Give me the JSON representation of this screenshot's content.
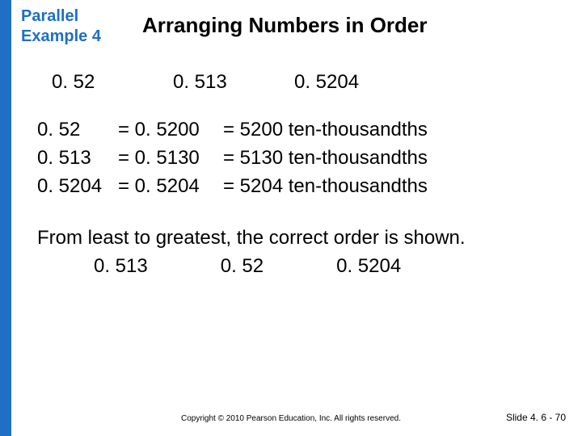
{
  "header": {
    "example_label_line1": "Parallel",
    "example_label_line2": "Example 4",
    "title": "Arranging Numbers in Order"
  },
  "given": {
    "n1": "0. 52",
    "n2": "0. 513",
    "n3": "0. 5204"
  },
  "rows": [
    {
      "a": "0. 52",
      "b": "= 0. 5200",
      "c": "= 5200 ten-thousandths"
    },
    {
      "a": "0. 513",
      "b": "= 0. 5130",
      "c": "= 5130 ten-thousandths"
    },
    {
      "a": "0. 5204",
      "b": "= 0. 5204",
      "c": "= 5204 ten-thousandths"
    }
  ],
  "conclusion": "From least to greatest, the correct order is shown.",
  "ordered": {
    "o1": "0. 513",
    "o2": "0. 52",
    "o3": "0. 5204"
  },
  "footer": {
    "copyright": "Copyright © 2010 Pearson Education, Inc.  All rights reserved.",
    "slide": "Slide 4. 6 - 70"
  },
  "colors": {
    "accent": "#1f6fc4",
    "bg": "#ffffff",
    "text": "#000000"
  }
}
